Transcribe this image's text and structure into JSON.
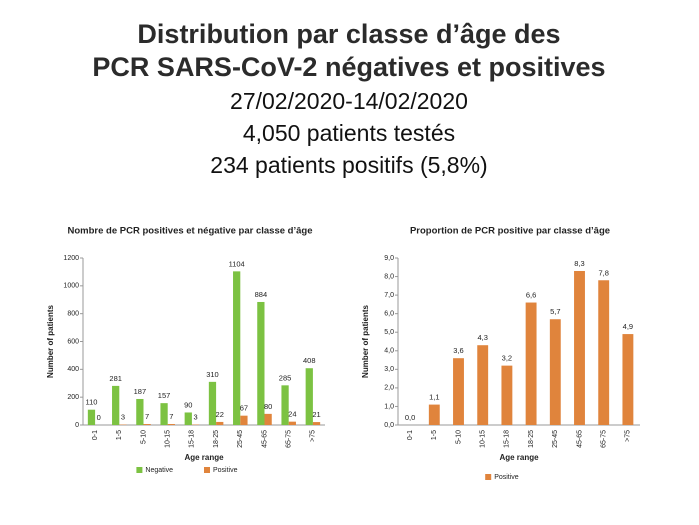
{
  "header": {
    "lines": [
      "Distribution par classe d’âge des",
      "PCR SARS-CoV-2 négatives et positives",
      "27/02/2020-14/02/2020",
      "4,050 patients testés",
      "234 patients positifs (5,8%)"
    ]
  },
  "chart_data": [
    {
      "type": "bar",
      "title": "Nombre de PCR positives et négative par classe d’âge",
      "x_label": "Age range",
      "y_label": "Number of patients",
      "categories": [
        "0-1",
        "1-5",
        "5-10",
        "10-15",
        "15-18",
        "18-25",
        "25-45",
        "45-65",
        "65-75",
        ">75"
      ],
      "series": [
        {
          "name": "Negative",
          "color": "#7cc242",
          "values": [
            110,
            281,
            187,
            157,
            90,
            310,
            1104,
            884,
            285,
            408
          ]
        },
        {
          "name": "Positive",
          "color": "#e0843c",
          "values": [
            0,
            3,
            7,
            7,
            3,
            22,
            67,
            80,
            24,
            21
          ]
        }
      ],
      "ylim": [
        0,
        1200
      ],
      "yticks": [
        0,
        200,
        400,
        600,
        800,
        1000,
        1200
      ],
      "grid": false
    },
    {
      "type": "bar",
      "title": "Proportion de PCR positive par classe d’âge",
      "x_label": "Age range",
      "y_label": "Number of patients",
      "categories": [
        "0-1",
        "1-5",
        "5-10",
        "10-15",
        "15-18",
        "18-25",
        "25-45",
        "45-65",
        "65-75",
        ">75"
      ],
      "series": [
        {
          "name": "Positive",
          "color": "#e0843c",
          "values": [
            0.0,
            1.1,
            3.6,
            4.3,
            3.2,
            6.6,
            5.7,
            8.3,
            7.8,
            4.9
          ],
          "value_labels": [
            "0,0",
            "1,1",
            "3,6",
            "4,3",
            "3,2",
            "6,6",
            "5,7",
            "8,3",
            "7,8",
            "4,9"
          ]
        }
      ],
      "ylim": [
        0,
        9
      ],
      "yticks": [
        {
          "value": 0,
          "label": "0,0"
        },
        {
          "value": 1,
          "label": "1,0"
        },
        {
          "value": 2,
          "label": "2,0"
        },
        {
          "value": 3,
          "label": "3,0"
        },
        {
          "value": 4,
          "label": "4,0"
        },
        {
          "value": 5,
          "label": "5,0"
        },
        {
          "value": 6,
          "label": "6,0"
        },
        {
          "value": 7,
          "label": "7,0"
        },
        {
          "value": 8,
          "label": "8,0"
        },
        {
          "value": 9,
          "label": "9,0"
        }
      ],
      "grid": false
    }
  ]
}
